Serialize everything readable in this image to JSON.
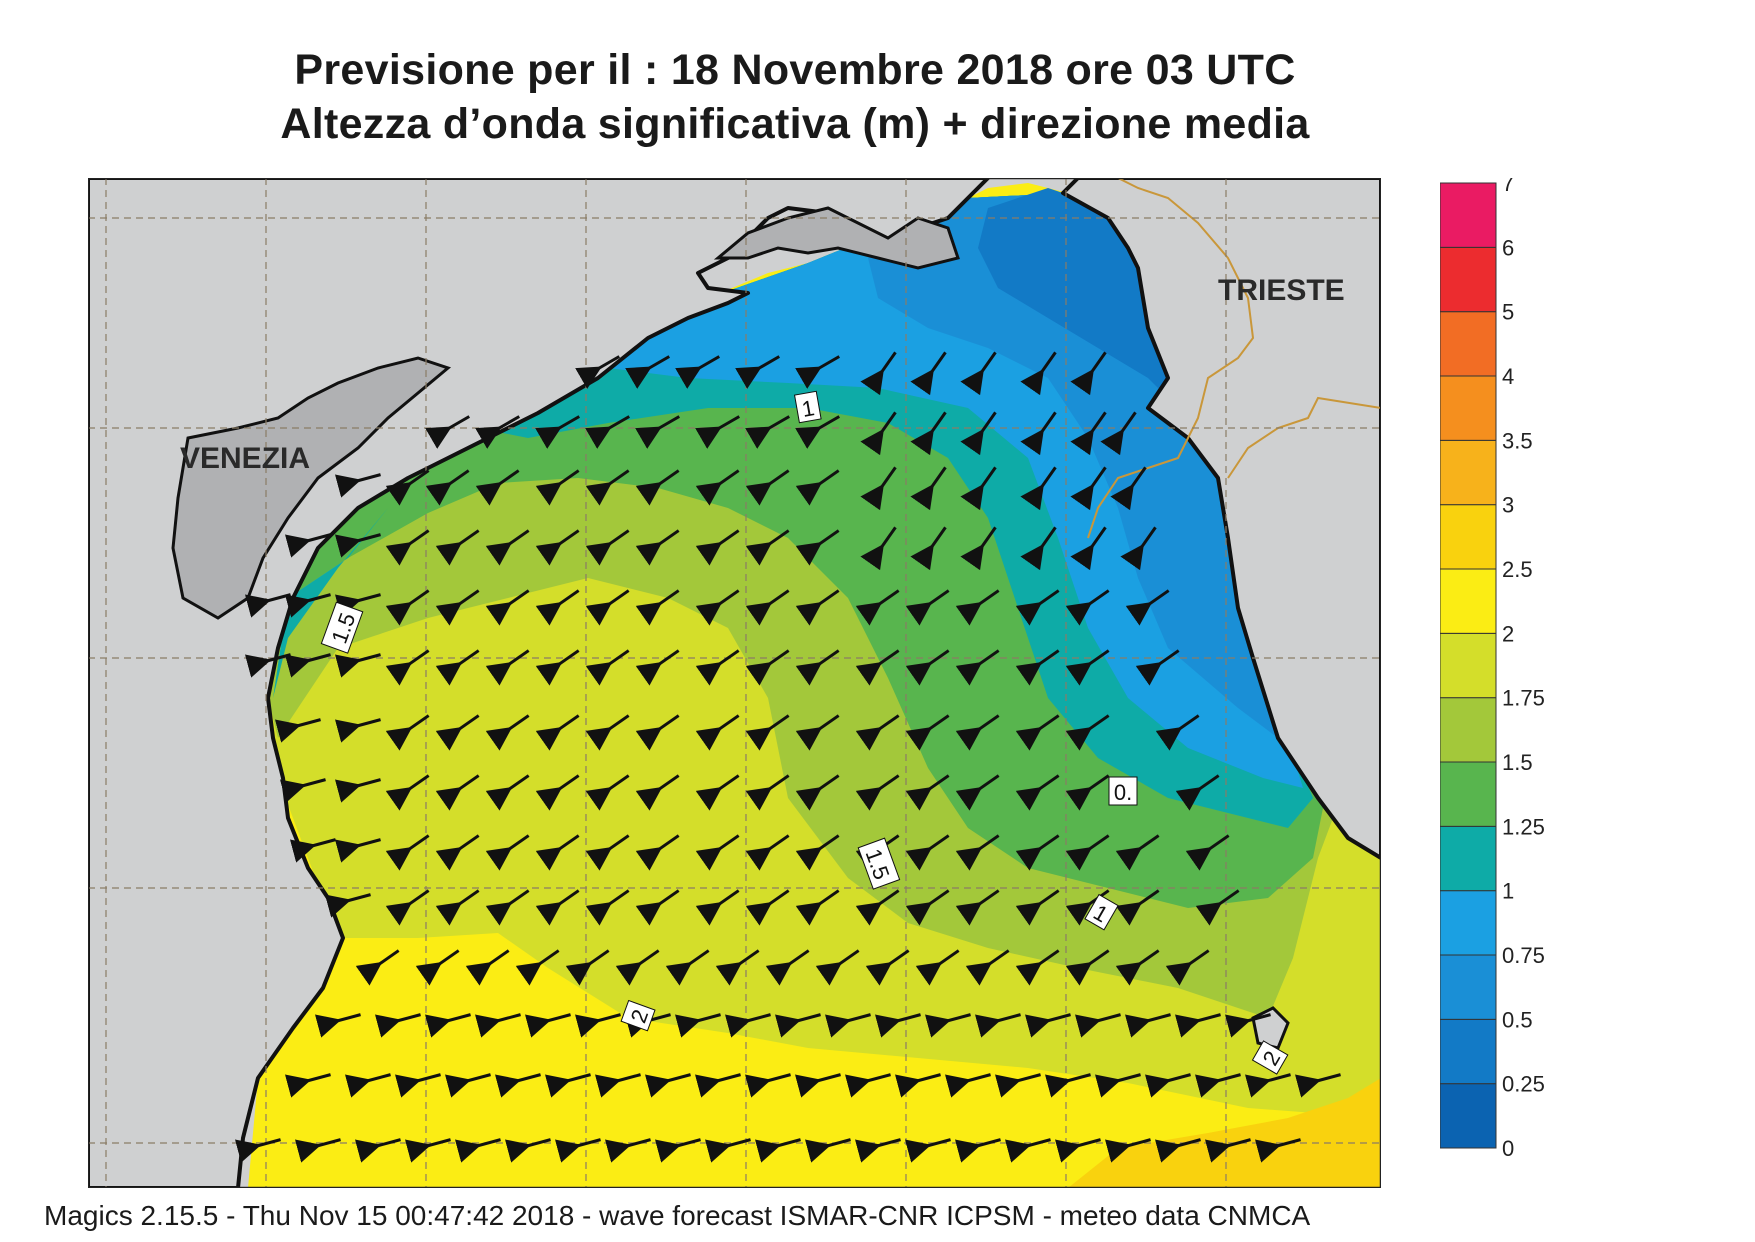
{
  "header": {
    "title_line1": "Previsione per il  :  18 Novembre  2018   ore 03 UTC",
    "title_line2": "Altezza d’onda significativa (m) + direzione media"
  },
  "map": {
    "cities": [
      {
        "name": "VENEZIA"
      },
      {
        "name": "TRIESTE"
      }
    ],
    "contour_labels": [
      "1",
      "1.5",
      "1.5",
      "0.",
      "1",
      "2",
      "2"
    ],
    "colors": {
      "land": "#cfd0d1",
      "lagoon": "#b0b1b3",
      "coast": "#111111",
      "border": "#c9973a",
      "grid": "#8a7c66",
      "arrow": "#111111"
    },
    "arrow_direction": "towards south-west / west"
  },
  "legend": {
    "ticks": [
      "0",
      "0.25",
      "0.5",
      "0.75",
      "1",
      "1.25",
      "1.5",
      "1.75",
      "2",
      "2.5",
      "3",
      "3.5",
      "4",
      "5",
      "6",
      "7"
    ],
    "colors": [
      "#0b63b1",
      "#127ac6",
      "#1a8fd6",
      "#1ba0e2",
      "#0eaba7",
      "#58b54e",
      "#a3c83a",
      "#d4de2a",
      "#fbed14",
      "#f9d20e",
      "#f7b21b",
      "#f58f1e",
      "#f26d24",
      "#ec2c2f",
      "#ea1b63"
    ]
  },
  "footer": {
    "text": "Magics 2.15.5 - Thu Nov 15 00:47:42 2018 - wave forecast  ISMAR-CNR  ICPSM - meteo data   CNMCA"
  }
}
